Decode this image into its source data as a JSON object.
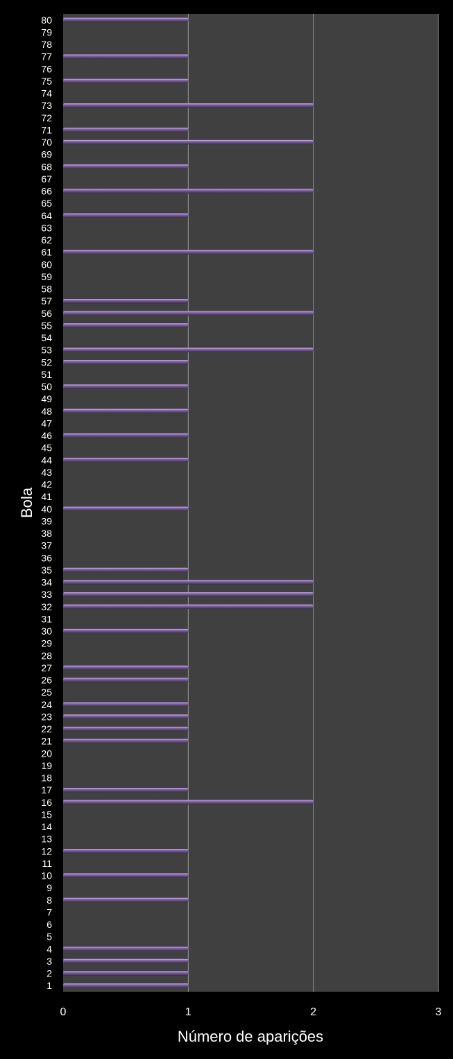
{
  "colors": {
    "background": "#000000",
    "plot_area": "#404040",
    "gridline": "#9a9a9a",
    "bar_fill": "#8064a2",
    "bar_highlight": "#c9b6e6",
    "bar_shadow": "#3a2c52",
    "text": "#ffffff"
  },
  "chart_data": {
    "type": "bar",
    "orientation": "horizontal",
    "title": "",
    "xlabel": "Número de aparições",
    "ylabel": "Bola",
    "xlim": [
      0,
      3
    ],
    "xticks": [
      "0",
      "1",
      "2",
      "3"
    ],
    "grid": true,
    "legend": "none",
    "categories": [
      "1",
      "2",
      "3",
      "4",
      "5",
      "6",
      "7",
      "8",
      "9",
      "10",
      "11",
      "12",
      "13",
      "14",
      "15",
      "16",
      "17",
      "18",
      "19",
      "20",
      "21",
      "22",
      "23",
      "24",
      "25",
      "26",
      "27",
      "28",
      "29",
      "30",
      "31",
      "32",
      "33",
      "34",
      "35",
      "36",
      "37",
      "38",
      "39",
      "40",
      "41",
      "42",
      "43",
      "44",
      "45",
      "46",
      "47",
      "48",
      "49",
      "50",
      "51",
      "52",
      "53",
      "54",
      "55",
      "56",
      "57",
      "58",
      "59",
      "60",
      "61",
      "62",
      "63",
      "64",
      "65",
      "66",
      "67",
      "68",
      "69",
      "70",
      "71",
      "72",
      "73",
      "74",
      "75",
      "76",
      "77",
      "78",
      "79",
      "80"
    ],
    "values": [
      1,
      1,
      1,
      1,
      0,
      0,
      0,
      1,
      0,
      1,
      0,
      1,
      0,
      0,
      0,
      2,
      1,
      0,
      0,
      0,
      1,
      1,
      1,
      1,
      0,
      1,
      1,
      0,
      0,
      1,
      0,
      2,
      2,
      2,
      1,
      0,
      0,
      0,
      0,
      1,
      0,
      0,
      0,
      1,
      0,
      1,
      0,
      1,
      0,
      1,
      0,
      1,
      2,
      0,
      1,
      2,
      1,
      0,
      0,
      0,
      2,
      0,
      0,
      1,
      0,
      2,
      0,
      1,
      0,
      2,
      1,
      0,
      2,
      0,
      1,
      0,
      1,
      0,
      0,
      1
    ]
  }
}
